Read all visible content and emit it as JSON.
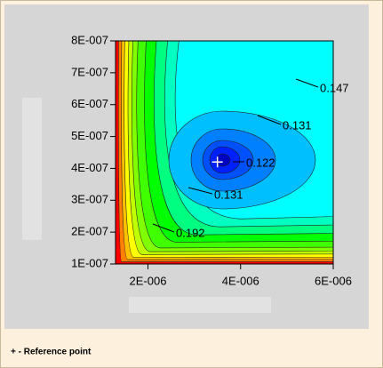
{
  "chart_data": {
    "type": "contour",
    "xlim": [
      1.3e-06,
      6e-06
    ],
    "ylim": [
      1e-07,
      8e-07
    ],
    "xticks": [
      {
        "value": 2e-06,
        "label": "2E-006"
      },
      {
        "value": 4e-06,
        "label": "4E-006"
      },
      {
        "value": 6e-06,
        "label": "6E-006"
      }
    ],
    "yticks": [
      {
        "value": 1e-07,
        "label": "1E-007"
      },
      {
        "value": 2e-07,
        "label": "2E-007"
      },
      {
        "value": 3e-07,
        "label": "3E-007"
      },
      {
        "value": 4e-07,
        "label": "4E-007"
      },
      {
        "value": 5e-07,
        "label": "5E-007"
      },
      {
        "value": 6e-07,
        "label": "6E-007"
      },
      {
        "value": 7e-07,
        "label": "7E-007"
      },
      {
        "value": 8e-07,
        "label": "8E-007"
      }
    ],
    "contour_labels": [
      0.147,
      0.131,
      0.122,
      0.131,
      0.192
    ],
    "reference_point": {
      "x": 3.5e-06,
      "y": 4.2e-07
    },
    "legend": "+ - Reference point"
  }
}
